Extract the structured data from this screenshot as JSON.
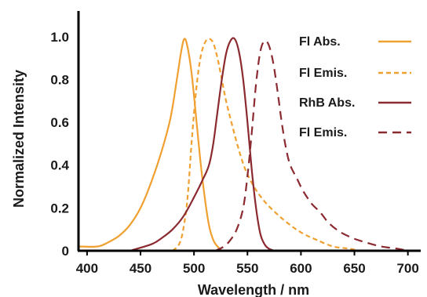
{
  "chart_data": {
    "type": "line",
    "xlabel": "Wavelength / nm",
    "ylabel": "Normalized  Intensity",
    "xlim": [
      392,
      712
    ],
    "ylim": [
      0,
      1.12
    ],
    "xticks": [
      "400",
      "450",
      "500",
      "550",
      "600",
      "650",
      "700"
    ],
    "xtick_values": [
      400,
      450,
      500,
      550,
      600,
      650,
      700
    ],
    "yticks": [
      "0",
      "0.2",
      "0.4",
      "0.6",
      "0.8",
      "1.0"
    ],
    "ytick_values": [
      0,
      0.2,
      0.4,
      0.6,
      0.8,
      1.0
    ],
    "legend_position": "top-right",
    "series": [
      {
        "name": "Fl Abs.",
        "color": "#F0A030",
        "dash": "solid",
        "x": [
          392,
          410,
          420,
          430,
          440,
          450,
          460,
          470,
          478,
          484,
          488,
          491,
          494,
          498,
          502,
          506,
          510,
          514,
          518,
          522,
          526
        ],
        "y": [
          0.02,
          0.02,
          0.04,
          0.07,
          0.12,
          0.2,
          0.32,
          0.47,
          0.62,
          0.8,
          0.93,
          0.99,
          0.95,
          0.82,
          0.62,
          0.42,
          0.25,
          0.12,
          0.05,
          0.02,
          0.0
        ]
      },
      {
        "name": "Fl Emis.",
        "color": "#F0A030",
        "dash": "short",
        "x": [
          480,
          486,
          490,
          494,
          498,
          502,
          506,
          510,
          514,
          518,
          522,
          526,
          530,
          536,
          542,
          548,
          556,
          566,
          578,
          590,
          602,
          615,
          630,
          645,
          655
        ],
        "y": [
          0.0,
          0.03,
          0.1,
          0.25,
          0.52,
          0.75,
          0.9,
          0.97,
          0.99,
          0.97,
          0.9,
          0.8,
          0.7,
          0.58,
          0.47,
          0.38,
          0.3,
          0.23,
          0.17,
          0.12,
          0.08,
          0.05,
          0.02,
          0.01,
          0.0
        ]
      },
      {
        "name": "RhB Abs.",
        "color": "#8B2A30",
        "dash": "solid",
        "x": [
          440,
          460,
          470,
          480,
          490,
          500,
          508,
          514,
          518,
          522,
          526,
          530,
          534,
          538,
          542,
          546,
          550,
          554,
          558,
          562,
          566,
          570,
          575
        ],
        "y": [
          0.0,
          0.03,
          0.06,
          0.1,
          0.16,
          0.25,
          0.33,
          0.4,
          0.5,
          0.65,
          0.8,
          0.92,
          0.98,
          0.99,
          0.93,
          0.8,
          0.6,
          0.38,
          0.2,
          0.08,
          0.03,
          0.01,
          0.0
        ]
      },
      {
        "name": "Fl Emis.",
        "color": "#8B2A30",
        "dash": "long",
        "x": [
          520,
          528,
          534,
          540,
          546,
          550,
          554,
          558,
          562,
          566,
          570,
          574,
          578,
          582,
          586,
          590,
          596,
          602,
          610,
          618,
          626,
          636,
          648,
          660,
          675,
          690,
          700
        ],
        "y": [
          0.0,
          0.02,
          0.05,
          0.1,
          0.2,
          0.35,
          0.55,
          0.78,
          0.93,
          0.98,
          0.96,
          0.88,
          0.75,
          0.6,
          0.48,
          0.4,
          0.34,
          0.28,
          0.22,
          0.18,
          0.13,
          0.09,
          0.06,
          0.04,
          0.02,
          0.01,
          0.0
        ]
      }
    ]
  }
}
